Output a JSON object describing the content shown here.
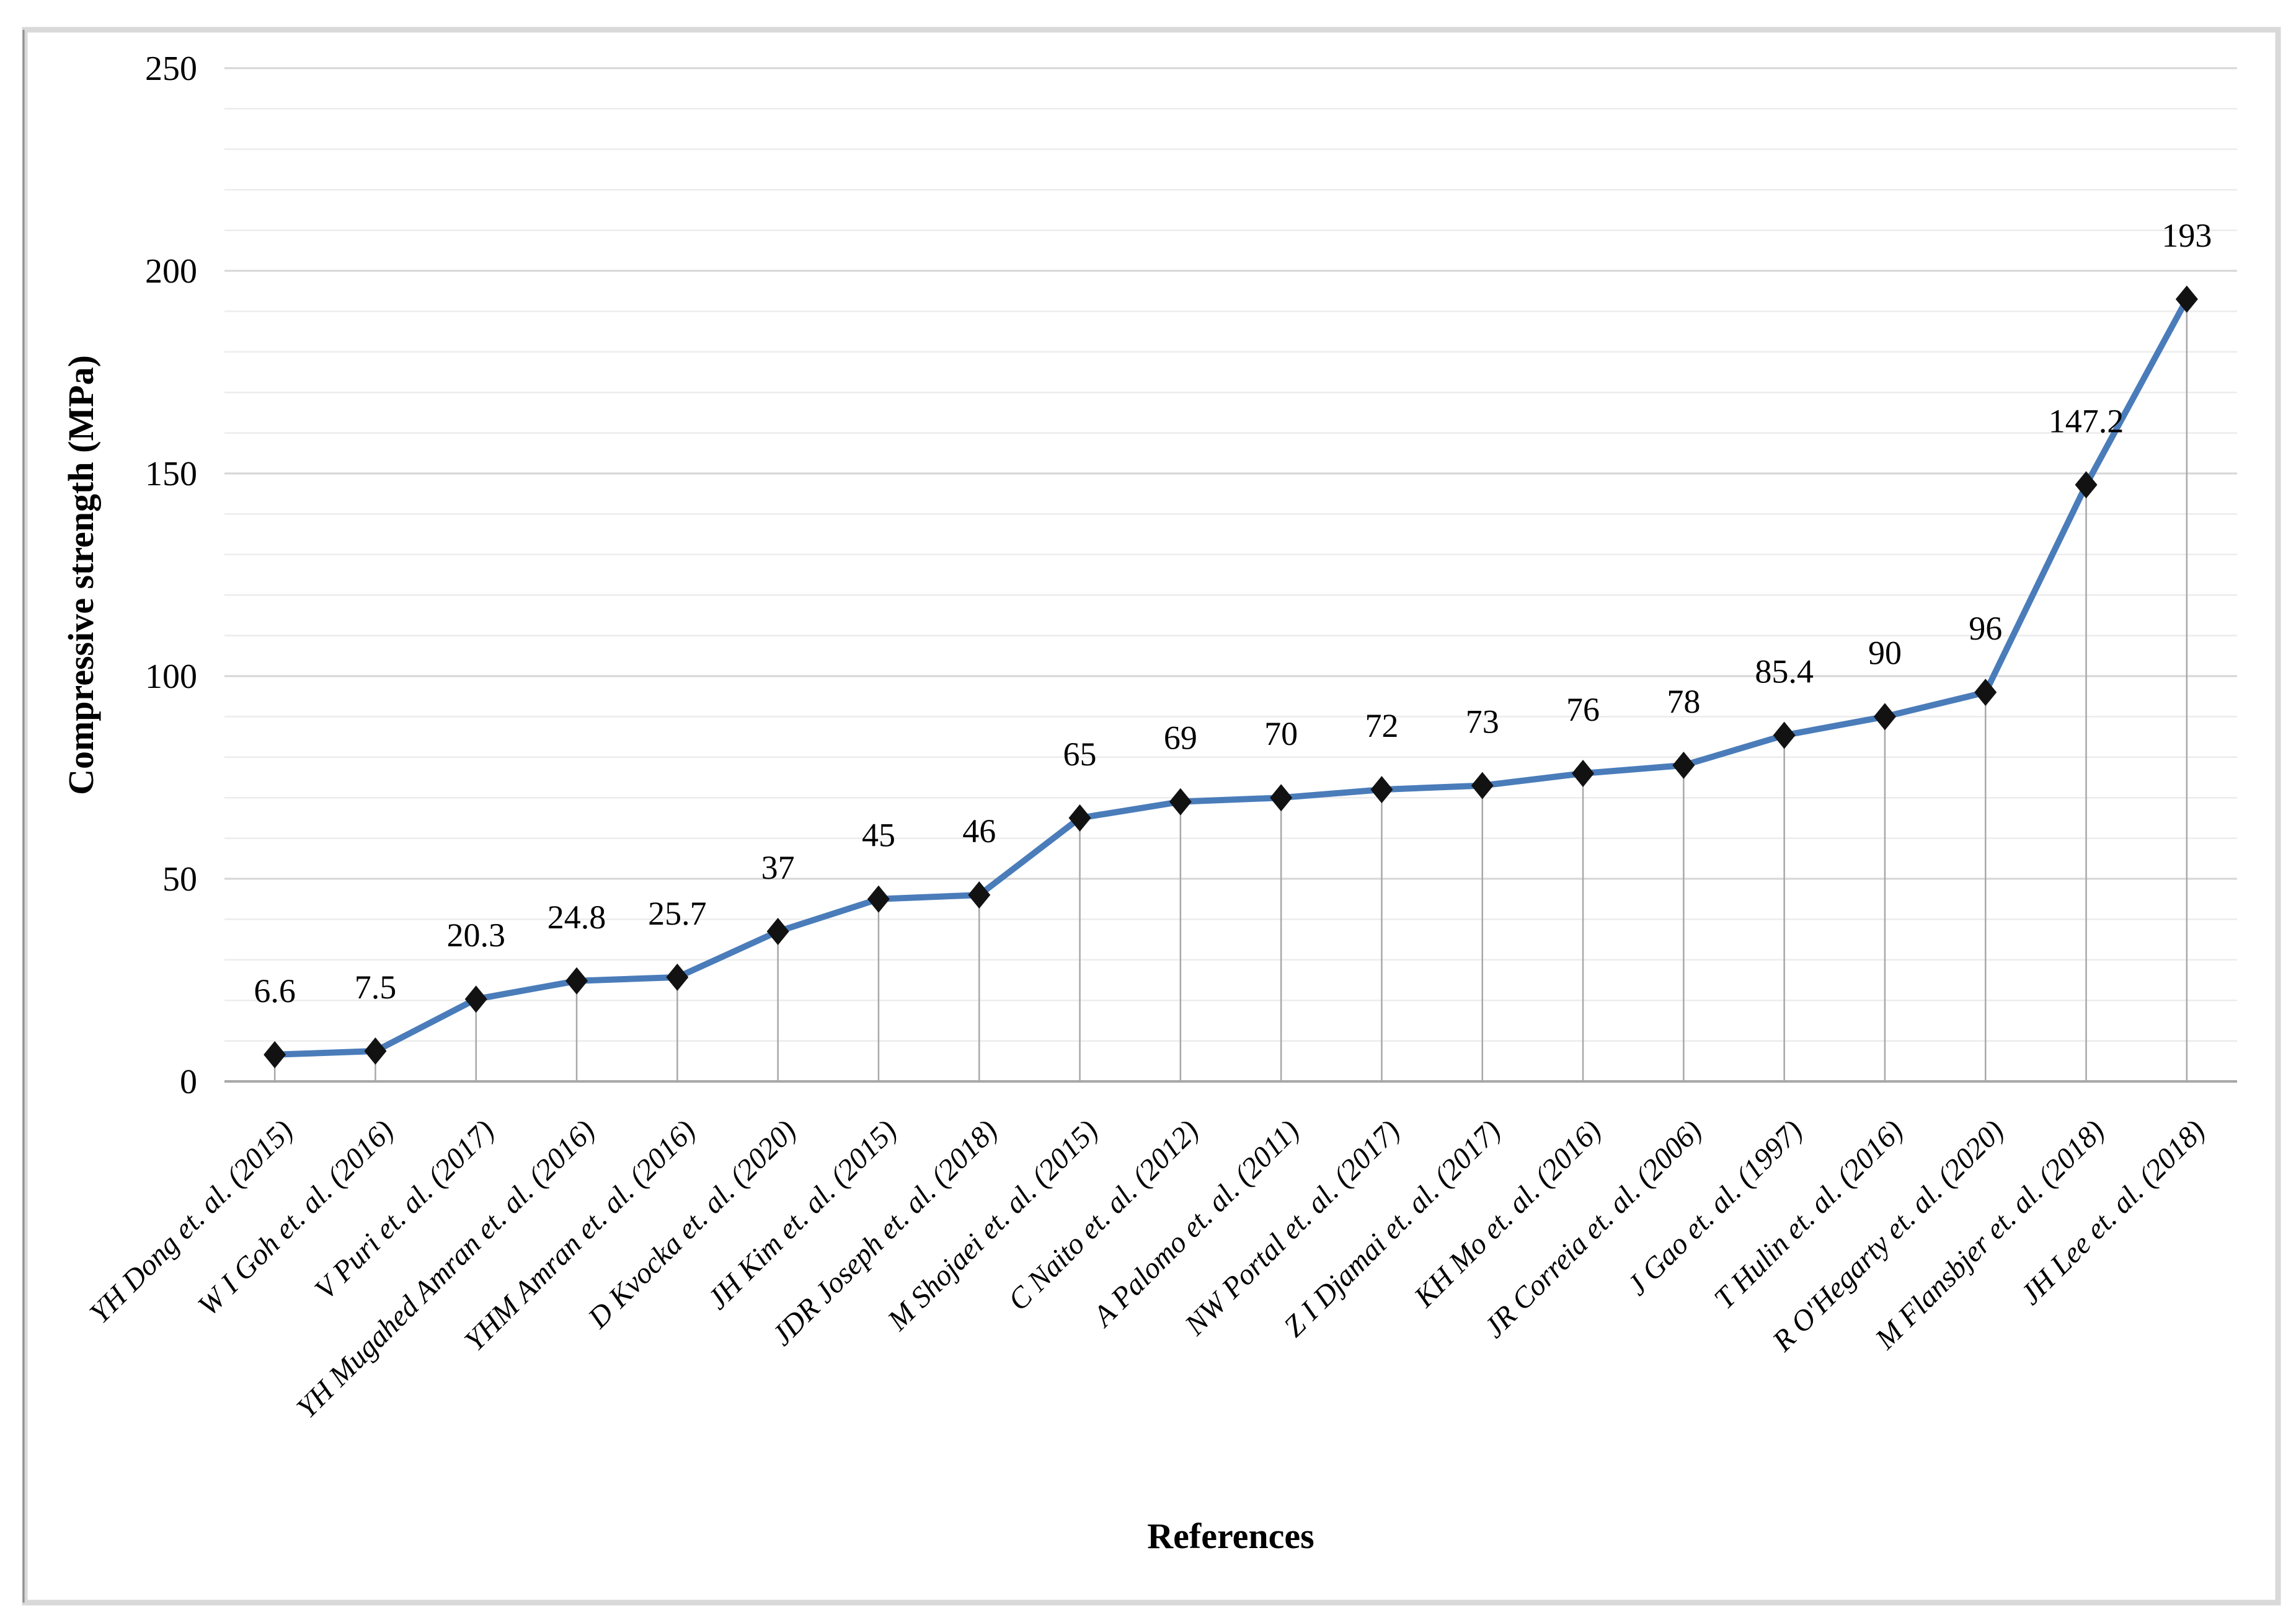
{
  "figure": {
    "background": "#ffffff",
    "border_color": "#d9d9d9",
    "left_edge_color": "#8f8f8f"
  },
  "chart_data": {
    "type": "line",
    "title": "",
    "xlabel": "References",
    "ylabel": "Compressive strength (MPa)",
    "ylim": [
      0,
      250
    ],
    "y_major_step": 50,
    "y_minor_step": 10,
    "y_tick_labels": [
      "0",
      "50",
      "100",
      "150",
      "200",
      "250"
    ],
    "grid": "horizontal minor+major, drop lines under points",
    "legend": "none",
    "marker": "diamond",
    "categories": [
      "YH Dong et. al. (2015)",
      "W I Goh et. al. (2016)",
      "V Puri et. al. (2017)",
      "YH Mugahed Amran et. al. (2016)",
      "YHM Amran et. al. (2016)",
      "D Kvocka et. al. (2020)",
      "JH Kim et. al. (2015)",
      "JDR Joseph et. al. (2018)",
      "M Shojaei et. al. (2015)",
      "C Naito et. al. (2012)",
      "A Palomo et. al. (2011)",
      "NW Portal et. al. (2017)",
      "Z I Djamai et. al. (2017)",
      "KH Mo et. al. (2016)",
      "JR Correia et. al. (2006)",
      "J Gao et. al. (1997)",
      "T Hulin et. al. (2016)",
      "R O'Hegarty et. al. (2020)",
      "M Flansbjer et. al. (2018)",
      "JH Lee et. al. (2018)"
    ],
    "values": [
      6.6,
      7.5,
      20.3,
      24.8,
      25.7,
      37,
      45,
      46,
      65,
      69,
      70,
      72,
      73,
      76,
      78,
      85.4,
      90,
      96,
      147.2,
      193
    ],
    "data_labels": [
      "6.6",
      "7.5",
      "20.3",
      "24.8",
      "25.7",
      "37",
      "45",
      "46",
      "65",
      "69",
      "70",
      "72",
      "73",
      "76",
      "78",
      "85.4",
      "90",
      "96",
      "147.2",
      "193"
    ],
    "colors": {
      "line": "#4a7cba",
      "marker": "#121212",
      "minor_grid": "#ececec",
      "major_grid": "#d6d6d6",
      "axis_line": "#a8a8a8",
      "drop_line": "#a8a8a8",
      "text": "#000000"
    }
  }
}
